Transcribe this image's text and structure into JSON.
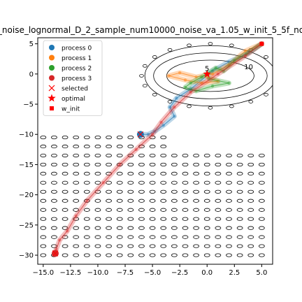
{
  "chart_data": {
    "type": "line",
    "title": "_noise_lognormal_D_2_sample_num10000_noise_va_1.05_w_init_5_5f_no",
    "xlabel": "",
    "ylabel": "",
    "xlim": [
      -15.5,
      6.0
    ],
    "ylim": [
      -31.5,
      6.0
    ],
    "xticks": [
      -15.0,
      -12.5,
      -10.0,
      -7.5,
      -5.0,
      -2.5,
      0.0,
      2.5,
      5.0
    ],
    "xtick_labels": [
      "−15.0",
      "−12.5",
      "−10.0",
      "−7.5",
      "−5.0",
      "−2.5",
      "0.0",
      "2.5",
      "5.0"
    ],
    "yticks": [
      5,
      0,
      -5,
      -10,
      -15,
      -20,
      -25,
      -30
    ],
    "ytick_labels": [
      "5",
      "0",
      "−5",
      "−10",
      "−15",
      "−20",
      "−25",
      "−30"
    ],
    "contour_labels": [
      {
        "text": "5",
        "x": 0.0,
        "y": 0.5
      },
      {
        "text": "10",
        "x": 3.8,
        "y": 0.8
      }
    ],
    "legend": {
      "placement": "upper-left",
      "entries": [
        {
          "label": "process 0",
          "marker": "circle",
          "color": "#1f77b4"
        },
        {
          "label": "process 1",
          "marker": "circle",
          "color": "#ff7f0e"
        },
        {
          "label": "process 2",
          "marker": "circle",
          "color": "#2ca02c"
        },
        {
          "label": "process 3",
          "marker": "circle",
          "color": "#d62728"
        },
        {
          "label": "selected",
          "marker": "x",
          "color": "#ff0000"
        },
        {
          "label": "optimal",
          "marker": "star",
          "color": "#ff0000"
        },
        {
          "label": "w_init",
          "marker": "square",
          "color": "#ff0000"
        }
      ]
    },
    "series": [
      {
        "name": "process 0",
        "color": "#1f77b4",
        "x": [
          5.0,
          3.8,
          2.0,
          0.5,
          -1.5,
          -2.8,
          -3.4,
          -3.0,
          -4.0,
          -4.8,
          -5.4,
          -6.0
        ],
        "y": [
          5.0,
          3.5,
          2.0,
          0.5,
          -2.5,
          -4.0,
          -5.5,
          -7.0,
          -8.5,
          -9.5,
          -10.0,
          -10.0
        ]
      },
      {
        "name": "process 1",
        "color": "#ff7f0e",
        "x": [
          5.0,
          3.5,
          2.0,
          0.5,
          -1.0,
          -2.5,
          -3.5,
          -2.0,
          -0.5,
          1.0,
          0.0
        ],
        "y": [
          5.0,
          3.8,
          1.5,
          0.0,
          -0.5,
          0.2,
          -0.3,
          -1.0,
          -1.5,
          -1.2,
          -0.5
        ]
      },
      {
        "name": "process 2",
        "color": "#2ca02c",
        "x": [
          5.0,
          3.6,
          2.5,
          1.5,
          0.8,
          -0.5,
          -1.5,
          -2.0,
          -1.0,
          0.5,
          2.0,
          0.2
        ],
        "y": [
          5.0,
          3.3,
          2.2,
          0.5,
          1.0,
          -0.5,
          -1.5,
          -2.2,
          -2.8,
          -2.0,
          -1.5,
          -0.8
        ]
      },
      {
        "name": "process 3",
        "color": "#d62728",
        "x": [
          5.0,
          3.5,
          1.0,
          -1.5,
          -3.0,
          -4.2,
          -5.0,
          -6.5,
          -8.0,
          -9.5,
          -11.0,
          -12.0,
          -12.8,
          -13.5,
          -13.8,
          -14.0
        ],
        "y": [
          5.0,
          3.0,
          0.0,
          -3.0,
          -5.5,
          -8.0,
          -10.0,
          -12.5,
          -15.0,
          -18.0,
          -21.0,
          -23.5,
          -26.0,
          -27.5,
          -29.0,
          -29.8
        ]
      }
    ],
    "selected_points": [
      {
        "x": -13.9,
        "y": -29.7
      },
      {
        "x": -6.1,
        "y": -10.0
      }
    ],
    "optimal_point": {
      "x": 0.0,
      "y": 0.0
    },
    "w_init": {
      "x": 5.0,
      "y": 5.0
    }
  }
}
